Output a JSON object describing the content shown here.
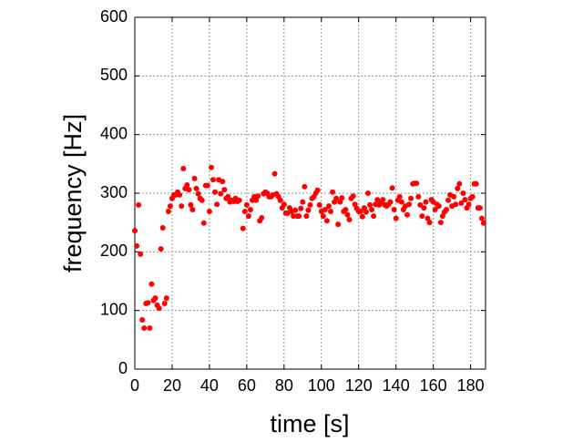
{
  "chart_data": {
    "type": "scatter",
    "x_label": "time [s]",
    "y_label": "frequency [Hz]",
    "xlim": [
      0,
      188
    ],
    "ylim": [
      0,
      600
    ],
    "xticks": [
      0,
      20,
      40,
      60,
      80,
      100,
      120,
      140,
      160,
      180
    ],
    "yticks": [
      0,
      100,
      200,
      300,
      400,
      500,
      600
    ],
    "grid": true,
    "color": "#ff0000",
    "x": [
      0,
      1,
      2,
      3,
      4,
      5,
      6,
      7,
      8,
      9,
      10,
      11,
      12,
      13,
      14,
      15,
      16,
      17,
      18,
      19,
      20,
      21,
      22,
      23,
      24,
      25,
      26,
      27,
      28,
      29,
      30,
      31,
      32,
      33,
      34,
      35,
      36,
      37,
      38,
      39,
      40,
      41,
      42,
      43,
      44,
      45,
      46,
      47,
      48,
      49,
      50,
      51,
      52,
      53,
      54,
      55,
      56,
      58,
      59,
      60,
      61,
      62,
      63,
      64,
      65,
      66,
      67,
      68,
      69,
      70,
      71,
      72,
      73,
      74,
      75,
      76,
      77,
      78,
      79,
      80,
      81,
      82,
      83,
      84,
      85,
      86,
      87,
      88,
      89,
      90,
      91,
      92,
      93,
      94,
      95,
      96,
      97,
      98,
      99,
      100,
      101,
      102,
      103,
      104,
      105,
      106,
      107,
      108,
      109,
      110,
      111,
      112,
      113,
      114,
      115,
      116,
      117,
      118,
      119,
      120,
      121,
      122,
      123,
      124,
      125,
      126,
      127,
      128,
      129,
      130,
      131,
      132,
      133,
      134,
      135,
      136,
      137,
      138,
      139,
      140,
      141,
      142,
      143,
      144,
      145,
      146,
      147,
      148,
      149,
      150,
      151,
      152,
      153,
      154,
      155,
      156,
      157,
      158,
      159,
      160,
      161,
      162,
      163,
      164,
      165,
      166,
      167,
      168,
      169,
      170,
      171,
      172,
      173,
      174,
      175,
      176,
      177,
      178,
      179,
      180,
      181,
      182,
      183,
      184,
      185,
      186,
      187
    ],
    "y": [
      236,
      210,
      280,
      196,
      84,
      70,
      112,
      113,
      70,
      145,
      117,
      121,
      109,
      104,
      205,
      241,
      112,
      121,
      269,
      278,
      291,
      297,
      297,
      302,
      297,
      278,
      342,
      308,
      314,
      306,
      280,
      272,
      325,
      308,
      299,
      291,
      288,
      249,
      313,
      313,
      269,
      344,
      323,
      302,
      281,
      323,
      299,
      320,
      306,
      291,
      294,
      285,
      288,
      286,
      291,
      286,
      288,
      240,
      269,
      280,
      261,
      272,
      288,
      294,
      288,
      295,
      253,
      258,
      299,
      302,
      300,
      294,
      294,
      297,
      333,
      299,
      294,
      288,
      275,
      281,
      266,
      266,
      275,
      269,
      261,
      271,
      261,
      261,
      274,
      285,
      311,
      261,
      271,
      280,
      291,
      294,
      300,
      305,
      280,
      269,
      261,
      272,
      253,
      278,
      269,
      302,
      285,
      291,
      247,
      285,
      292,
      269,
      272,
      263,
      255,
      291,
      295,
      281,
      274,
      269,
      269,
      260,
      275,
      268,
      300,
      280,
      272,
      261,
      281,
      289,
      280,
      285,
      289,
      280,
      278,
      281,
      285,
      309,
      272,
      257,
      288,
      294,
      285,
      272,
      278,
      263,
      281,
      291,
      316,
      317,
      317,
      294,
      280,
      261,
      275,
      285,
      257,
      250,
      289,
      285,
      272,
      281,
      278,
      250,
      261,
      268,
      272,
      288,
      297,
      278,
      294,
      281,
      308,
      316,
      283,
      300,
      289,
      275,
      281,
      291,
      294,
      316,
      316,
      275,
      275,
      257,
      249
    ]
  }
}
